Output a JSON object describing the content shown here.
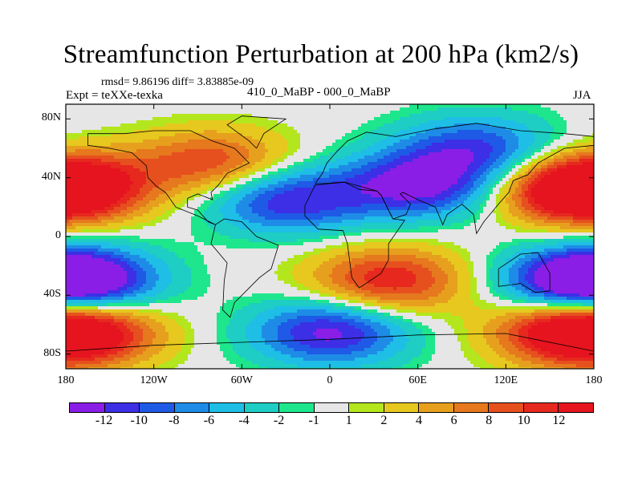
{
  "title": "Streamfunction Perturbation at 200 hPa (km2/s)",
  "stats": "rmsd= 9.86196 diff= 3.83885e-09",
  "experiment": "Expt = teXXe-texka",
  "difference": "410_0_MaBP - 000_0_MaBP",
  "season": "JJA",
  "chart_data": {
    "type": "heatmap",
    "title": "Streamfunction Perturbation at 200 hPa (km2/s)",
    "xlabel": "",
    "ylabel": "",
    "x_ticks": [
      "180",
      "120W",
      "60W",
      "0",
      "60E",
      "120E",
      "180"
    ],
    "y_ticks": [
      "80N",
      "40N",
      "0",
      "40S",
      "80S"
    ],
    "xlim": [
      -180,
      180
    ],
    "ylim": [
      -90,
      90
    ],
    "colorbar_levels": [
      "-12",
      "-10",
      "-8",
      "-6",
      "-4",
      "-2",
      "-1",
      "1",
      "2",
      "4",
      "6",
      "8",
      "10",
      "12"
    ],
    "colorbar_colors": [
      "#8a1ee6",
      "#3c2fe6",
      "#1e5ae6",
      "#1e8ce6",
      "#1ebee6",
      "#1ecdc3",
      "#1ee68c",
      "#e6e6e6",
      "#b4e61e",
      "#e6c81e",
      "#e6a01e",
      "#e6781e",
      "#e6501e",
      "#e6281e",
      "#e6141e"
    ],
    "features": [
      {
        "name": "N Atlantic positive",
        "lon": -80,
        "lat": 50,
        "value": 10
      },
      {
        "name": "N Pacific positive",
        "lon": -180,
        "lat": 35,
        "value": 12
      },
      {
        "name": "W Pacific positive",
        "lon": 170,
        "lat": 30,
        "value": 12
      },
      {
        "name": "N Africa/Atlantic negative",
        "lon": -30,
        "lat": 25,
        "value": -12
      },
      {
        "name": "Asia negative",
        "lon": 60,
        "lat": 35,
        "value": -13
      },
      {
        "name": "Arctic N Asia negative",
        "lon": 100,
        "lat": 60,
        "value": -10
      },
      {
        "name": "S Pacific negative",
        "lon": -170,
        "lat": -30,
        "value": -12
      },
      {
        "name": "SW Pacific negative",
        "lon": 170,
        "lat": -30,
        "value": -12
      },
      {
        "name": "S Atlantic/Indian positive",
        "lon": 40,
        "lat": -30,
        "value": 12
      },
      {
        "name": "Southern Ocean Pacific positive",
        "lon": -170,
        "lat": -65,
        "value": 12
      },
      {
        "name": "Southern Ocean Atlantic negative",
        "lon": 0,
        "lat": -65,
        "value": -13
      },
      {
        "name": "Southern Ocean SW Pacific positive",
        "lon": 165,
        "lat": -65,
        "value": 12
      }
    ]
  }
}
